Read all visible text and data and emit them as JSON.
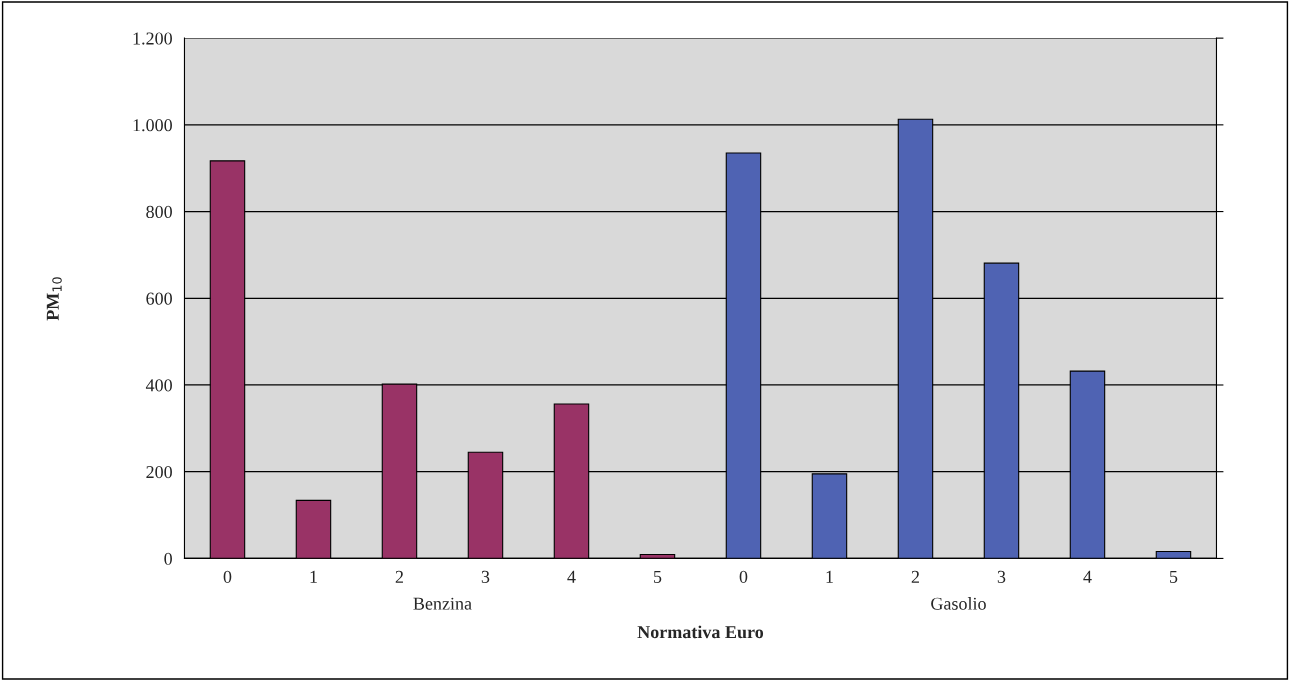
{
  "chart_data": {
    "type": "bar",
    "xlabel": "Normativa Euro",
    "ylabel": "PM$_{10}$",
    "categories": [
      "0",
      "1",
      "2",
      "3",
      "4",
      "5",
      "0",
      "1",
      "2",
      "3",
      "4",
      "5"
    ],
    "values": [
      917,
      134,
      402,
      245,
      356,
      9,
      935,
      195,
      1013,
      681,
      432,
      16
    ],
    "colors": [
      "#993366",
      "#993366",
      "#993366",
      "#993366",
      "#993366",
      "#993366",
      "#4f63b3",
      "#4f63b3",
      "#4f63b3",
      "#4f63b3",
      "#4f63b3",
      "#4f63b3"
    ],
    "ylim": [
      0,
      1200
    ],
    "yticks": [
      0,
      200,
      400,
      600,
      800,
      {
        "value": 1000,
        "label": "1.000"
      },
      {
        "value": 1200,
        "label": "1.200"
      }
    ],
    "grid": "y",
    "annotations": [
      "Benzina",
      "Gasolio"
    ]
  }
}
